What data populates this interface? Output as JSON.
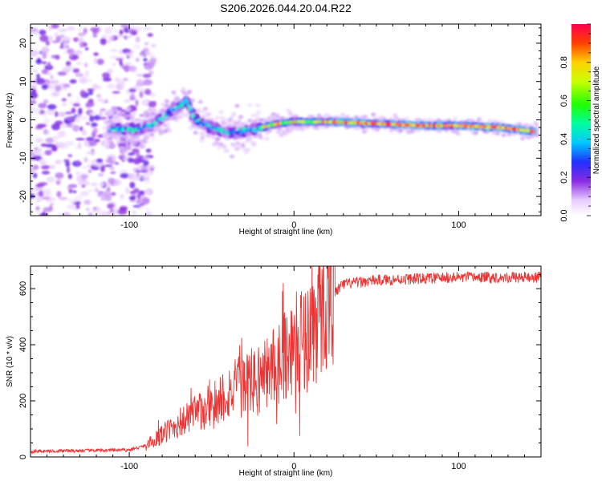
{
  "title": "S206.2026.044.20.04.R22",
  "chart_data": [
    {
      "type": "heatmap",
      "name": "spectrogram",
      "xlabel": "Height of straight line (km)",
      "ylabel": "Frequency (Hz)",
      "xlim": [
        -160,
        150
      ],
      "ylim": [
        -25,
        25
      ],
      "x_ticks": [
        -100,
        0,
        100
      ],
      "y_ticks": [
        -20,
        -10,
        0,
        10,
        20
      ],
      "ridge": {
        "description_points": [
          {
            "x": -110,
            "y": -2.5
          },
          {
            "x": -95,
            "y": -2.5
          },
          {
            "x": -85,
            "y": -1
          },
          {
            "x": -75,
            "y": 2
          },
          {
            "x": -65,
            "y": 5
          },
          {
            "x": -60,
            "y": 0
          },
          {
            "x": -50,
            "y": -2
          },
          {
            "x": -40,
            "y": -3.5
          },
          {
            "x": -30,
            "y": -3
          },
          {
            "x": -20,
            "y": -2
          },
          {
            "x": -10,
            "y": -1
          },
          {
            "x": 0,
            "y": -0.5
          },
          {
            "x": 20,
            "y": -0.5
          },
          {
            "x": 50,
            "y": -1
          },
          {
            "x": 80,
            "y": -1.5
          },
          {
            "x": 100,
            "y": -1.5
          },
          {
            "x": 125,
            "y": -2
          },
          {
            "x": 145,
            "y": -3
          }
        ]
      },
      "colorbar": {
        "label": "Normalized spectral amplitude",
        "ticks": [
          "0.0",
          "0.2",
          "0.4",
          "0.6",
          "0.8"
        ],
        "tick_values": [
          0,
          0.2,
          0.4,
          0.6,
          0.8
        ],
        "range": [
          0,
          1
        ]
      }
    },
    {
      "type": "line",
      "name": "snr",
      "xlabel": "Height of straight line (km)",
      "ylabel": "SNR (10 * v/v)",
      "xlim": [
        -160,
        150
      ],
      "ylim": [
        0,
        680
      ],
      "x_ticks": [
        -100,
        0,
        100
      ],
      "y_ticks": [
        0,
        200,
        400,
        600
      ],
      "color": "#ee3333",
      "trend_points": [
        {
          "x": -160,
          "y": 20
        },
        {
          "x": -100,
          "y": 25
        },
        {
          "x": -90,
          "y": 40
        },
        {
          "x": -80,
          "y": 80
        },
        {
          "x": -70,
          "y": 120
        },
        {
          "x": -60,
          "y": 150
        },
        {
          "x": -50,
          "y": 190
        },
        {
          "x": -40,
          "y": 230
        },
        {
          "x": -30,
          "y": 260
        },
        {
          "x": -20,
          "y": 280
        },
        {
          "x": -10,
          "y": 340
        },
        {
          "x": 0,
          "y": 400
        },
        {
          "x": 10,
          "y": 450
        },
        {
          "x": 20,
          "y": 560
        },
        {
          "x": 30,
          "y": 615
        },
        {
          "x": 50,
          "y": 630
        },
        {
          "x": 100,
          "y": 640
        },
        {
          "x": 150,
          "y": 640
        }
      ]
    }
  ]
}
